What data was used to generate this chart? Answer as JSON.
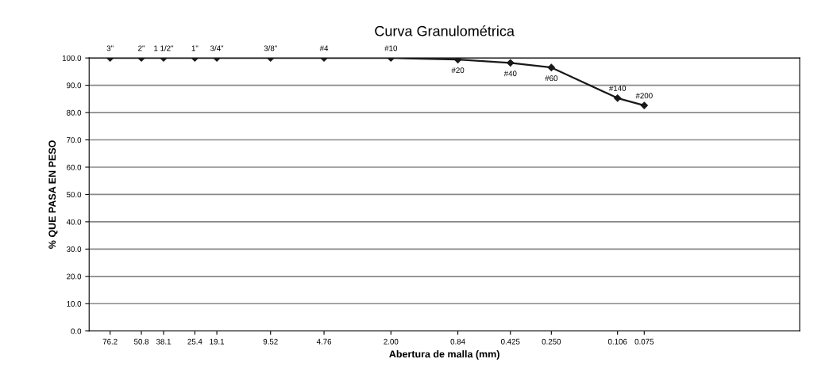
{
  "chart_data": {
    "type": "line",
    "title": "Curva Granulométrica",
    "xlabel": "Abertura de malla (mm)",
    "ylabel": "% QUE PASA EN PESO",
    "x": [
      76.2,
      50.8,
      38.1,
      25.4,
      19.1,
      9.52,
      4.76,
      2.0,
      0.84,
      0.425,
      0.25,
      0.106,
      0.075
    ],
    "series": [
      {
        "color": "#1a1a1a",
        "values": [
          100,
          100,
          100,
          100,
          100,
          100,
          100,
          100,
          99.4,
          98.2,
          96.5,
          85.3,
          82.6
        ]
      }
    ],
    "log": "x",
    "xlim": [
      100,
      0.01
    ],
    "xticks": [
      {
        "value": 76.2,
        "label": "76.2"
      },
      {
        "value": 50.8,
        "label": "50.8"
      },
      {
        "value": 38.1,
        "label": "38.1"
      },
      {
        "value": 25.4,
        "label": "25.4"
      },
      {
        "value": 19.1,
        "label": "19.1"
      },
      {
        "value": 9.52,
        "label": "9.52"
      },
      {
        "value": 4.76,
        "label": "4.76"
      },
      {
        "value": 2.0,
        "label": "2.00"
      },
      {
        "value": 0.84,
        "label": "0.84"
      },
      {
        "value": 0.425,
        "label": "0.425"
      },
      {
        "value": 0.25,
        "label": "0.250"
      },
      {
        "value": 0.106,
        "label": "0.106"
      },
      {
        "value": 0.075,
        "label": "0.075"
      }
    ],
    "annotations": [
      {
        "text": "3\"",
        "x": 76.2,
        "y": 100
      },
      {
        "text": "2\"",
        "x": 50.8,
        "y": 100
      },
      {
        "text": "1 1/2\"",
        "x": 38.1,
        "y": 100
      },
      {
        "text": "1\"",
        "x": 25.4,
        "y": 100
      },
      {
        "text": "3/4\"",
        "x": 19.1,
        "y": 100
      },
      {
        "text": "3/8\"",
        "x": 9.52,
        "y": 100
      },
      {
        "text": "#4",
        "x": 4.76,
        "y": 100
      },
      {
        "text": "#10",
        "x": 2.0,
        "y": 100
      },
      {
        "text": "#20",
        "x": 0.84,
        "y": 99.4
      },
      {
        "text": "#40",
        "x": 0.425,
        "y": 98.2
      },
      {
        "text": "#60",
        "x": 0.25,
        "y": 96.5
      },
      {
        "text": "#140",
        "x": 0.106,
        "y": 85.3
      },
      {
        "text": "#200",
        "x": 0.075,
        "y": 82.6
      }
    ],
    "ylim": [
      0,
      100
    ],
    "yticks": [
      {
        "value": 0,
        "label": "0.0"
      },
      {
        "value": 10,
        "label": "10.0"
      },
      {
        "value": 20,
        "label": "20.0"
      },
      {
        "value": 30,
        "label": "30.0"
      },
      {
        "value": 40,
        "label": "40.0"
      },
      {
        "value": 50,
        "label": "50.0"
      },
      {
        "value": 60,
        "label": "60.0"
      },
      {
        "value": 70,
        "label": "70.0"
      },
      {
        "value": 80,
        "label": "80.0"
      },
      {
        "value": 90,
        "label": "90.0"
      },
      {
        "value": 100,
        "label": "100.0"
      }
    ],
    "grid": "y",
    "marker": "diamond",
    "line_style": "solid"
  }
}
